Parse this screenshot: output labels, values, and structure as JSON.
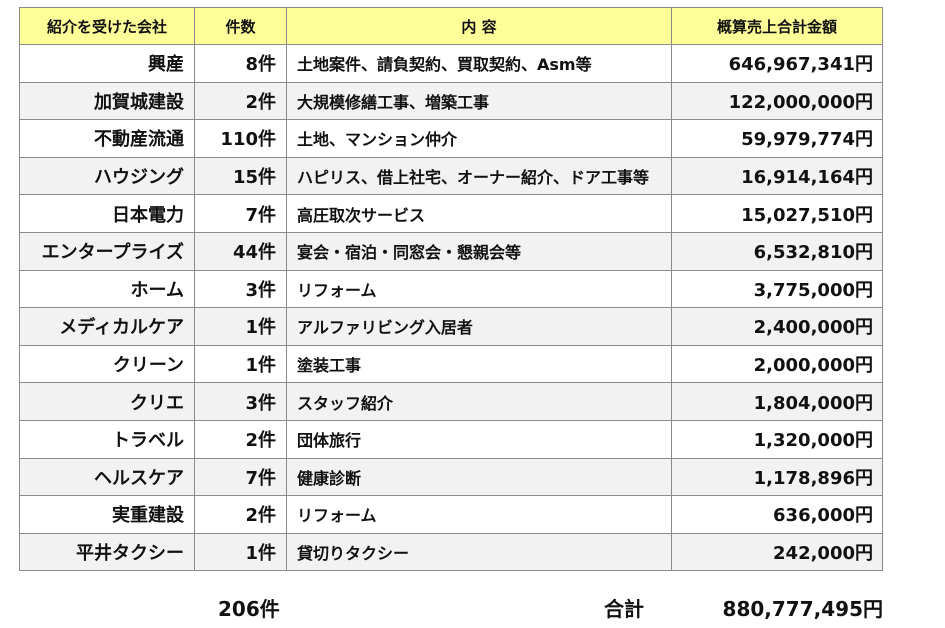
{
  "headers": {
    "client": "紹介を受けた会社",
    "count": "件数",
    "content": "内 容",
    "amount": "概算売上合計金額"
  },
  "rows": [
    {
      "client": "興産",
      "count": "8件",
      "content": "土地案件、請負契約、買取契約、Asm等",
      "amount": "646,967,341円"
    },
    {
      "client": "加賀城建設",
      "count": "2件",
      "content": "大規模修繕工事、増築工事",
      "amount": "122,000,000円"
    },
    {
      "client": "不動産流通",
      "count": "110件",
      "content": "土地、マンション仲介",
      "amount": "59,979,774円"
    },
    {
      "client": "ハウジング",
      "count": "15件",
      "content": "ハピリス、借上社宅、オーナー紹介、ドア工事等",
      "amount": "16,914,164円"
    },
    {
      "client": "日本電力",
      "count": "7件",
      "content": "高圧取次サービス",
      "amount": "15,027,510円"
    },
    {
      "client": "エンタープライズ",
      "count": "44件",
      "content": "宴会・宿泊・同窓会・懇親会等",
      "amount": "6,532,810円"
    },
    {
      "client": "ホーム",
      "count": "3件",
      "content": "リフォーム",
      "amount": "3,775,000円"
    },
    {
      "client": "メディカルケア",
      "count": "1件",
      "content": "アルファリビング入居者",
      "amount": "2,400,000円"
    },
    {
      "client": "クリーン",
      "count": "1件",
      "content": "塗装工事",
      "amount": "2,000,000円"
    },
    {
      "client": "クリエ",
      "count": "3件",
      "content": "スタッフ紹介",
      "amount": "1,804,000円"
    },
    {
      "client": "トラベル",
      "count": "2件",
      "content": "団体旅行",
      "amount": "1,320,000円"
    },
    {
      "client": "ヘルスケア",
      "count": "7件",
      "content": "健康診断",
      "amount": "1,178,896円"
    },
    {
      "client": "実重建設",
      "count": "2件",
      "content": "リフォーム",
      "amount": "636,000円"
    },
    {
      "client": "平井タクシー",
      "count": "1件",
      "content": "貸切りタクシー",
      "amount": "242,000円"
    }
  ],
  "footer": {
    "total_count": "206件",
    "total_label": "合計",
    "total_amount": "880,777,495円"
  }
}
